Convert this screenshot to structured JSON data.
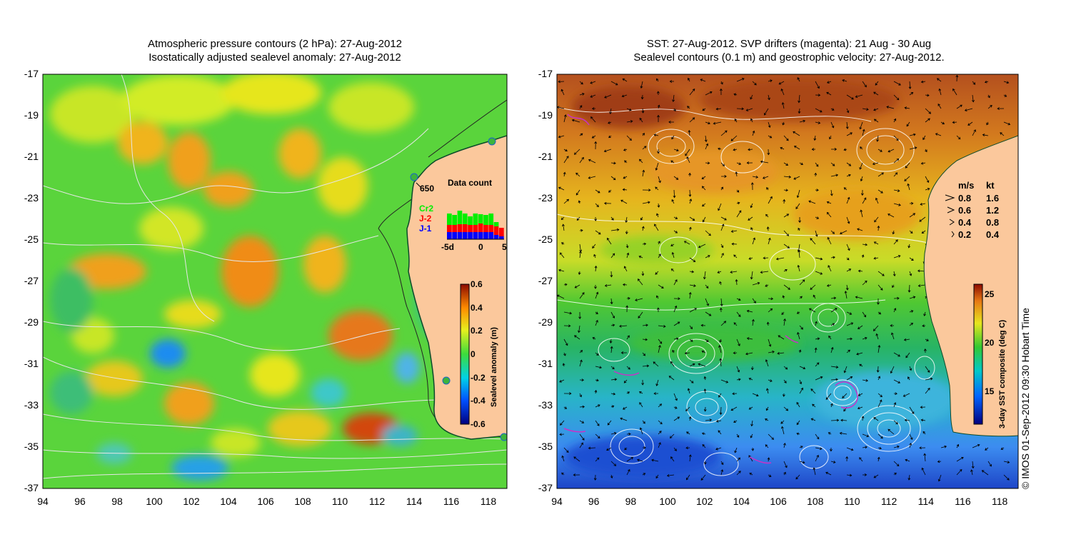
{
  "left_panel": {
    "title_line1": "Atmospheric pressure contours (2 hPa): 27-Aug-2012",
    "title_line2": "Isostatically adjusted sealevel anomaly: 27-Aug-2012",
    "colorbar": {
      "label": "Sealevel anomaly (m)",
      "ticks": [
        "0.6",
        "0.4",
        "0.2",
        "0",
        "-0.2",
        "-0.4",
        "-0.6"
      ]
    },
    "station_label": "650",
    "data_count": {
      "title": "Data count",
      "legend": [
        "Cr2",
        "J-2",
        "J-1"
      ],
      "x_tick_labels": [
        "-5d",
        "0",
        "5"
      ],
      "series": [
        {
          "name": "J-1",
          "color": "#0000ff",
          "values": [
            1,
            1,
            1,
            1,
            1,
            1,
            1,
            1,
            1,
            0.6,
            0.4
          ]
        },
        {
          "name": "J-2",
          "color": "#ff0000",
          "values": [
            1,
            1,
            1.1,
            1.1,
            1,
            1,
            1.2,
            1,
            1,
            1.2,
            1.2
          ]
        },
        {
          "name": "Cr2",
          "color": "#00ee00",
          "values": [
            1.6,
            1.4,
            1.9,
            1.5,
            1.2,
            1.6,
            1.3,
            1.4,
            1.6,
            0.6,
            0
          ]
        }
      ]
    }
  },
  "right_panel": {
    "title_line1": "SST: 27-Aug-2012. SVP drifters (magenta): 21 Aug - 30 Aug",
    "title_line2": "Sealevel contours (0.1 m) and geostrophic velocity: 27-Aug-2012.",
    "colorbar": {
      "label": "3-day SST composite (deg C)",
      "ticks": [
        "25",
        "20",
        "15"
      ]
    },
    "velocity_legend": {
      "header_ms": "m/s",
      "header_kt": "kt",
      "rows": [
        {
          "ms": "0.8",
          "kt": "1.6"
        },
        {
          "ms": "0.6",
          "kt": "1.2"
        },
        {
          "ms": "0.4",
          "kt": "0.8"
        },
        {
          "ms": "0.2",
          "kt": "0.4"
        }
      ]
    }
  },
  "axes": {
    "y_ticks": [
      "-17",
      "-19",
      "-21",
      "-23",
      "-25",
      "-27",
      "-29",
      "-31",
      "-33",
      "-35",
      "-37"
    ],
    "x_ticks": [
      "94",
      "96",
      "98",
      "100",
      "102",
      "104",
      "106",
      "108",
      "110",
      "112",
      "114",
      "116",
      "118"
    ]
  },
  "credit": "© IMOS 01-Sep-2012 09:30 Hobart Time",
  "colors": {
    "land": "#fbc89c",
    "sla_base": "#5ad43c",
    "sst_warm": "#c8641a",
    "sst_cold": "#1e64dc"
  }
}
